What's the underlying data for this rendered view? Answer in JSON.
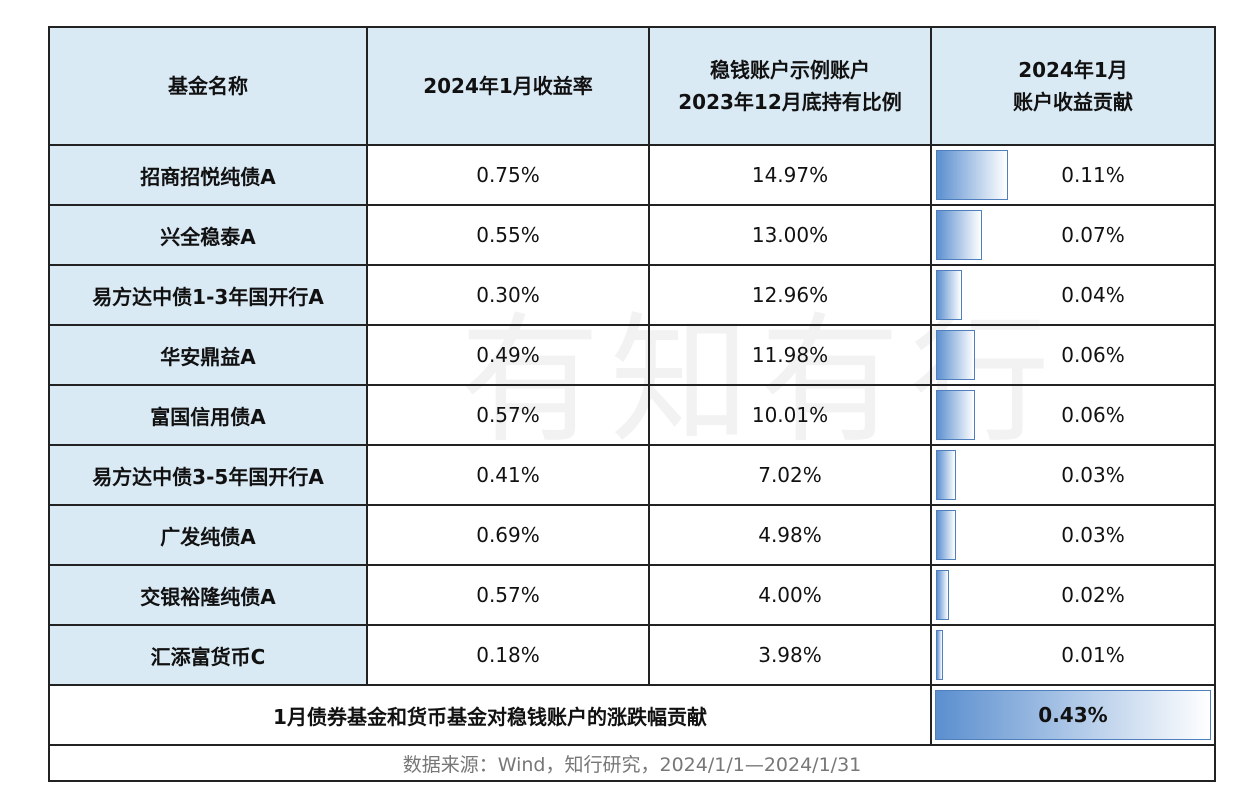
{
  "headers": {
    "fund_name": "基金名称",
    "return": "2024年1月收益率",
    "weight_line1": "稳钱账户示例账户",
    "weight_line2": "2023年12月底持有比例",
    "contrib_line1": "2024年1月",
    "contrib_line2": "账户收益贡献"
  },
  "rows": [
    {
      "name": "招商招悦纯债A",
      "return": "0.75%",
      "weight": "14.97%",
      "contrib": "0.11%",
      "contrib_value": 0.11
    },
    {
      "name": "兴全稳泰A",
      "return": "0.55%",
      "weight": "13.00%",
      "contrib": "0.07%",
      "contrib_value": 0.07
    },
    {
      "name": "易方达中债1-3年国开行A",
      "return": "0.30%",
      "weight": "12.96%",
      "contrib": "0.04%",
      "contrib_value": 0.04
    },
    {
      "name": "华安鼎益A",
      "return": "0.49%",
      "weight": "11.98%",
      "contrib": "0.06%",
      "contrib_value": 0.06
    },
    {
      "name": "富国信用债A",
      "return": "0.57%",
      "weight": "10.01%",
      "contrib": "0.06%",
      "contrib_value": 0.06
    },
    {
      "name": "易方达中债3-5年国开行A",
      "return": "0.41%",
      "weight": "7.02%",
      "contrib": "0.03%",
      "contrib_value": 0.03
    },
    {
      "name": "广发纯债A",
      "return": "0.69%",
      "weight": "4.98%",
      "contrib": "0.03%",
      "contrib_value": 0.03
    },
    {
      "name": "交银裕隆纯债A",
      "return": "0.57%",
      "weight": "4.00%",
      "contrib": "0.02%",
      "contrib_value": 0.02
    },
    {
      "name": "汇添富货币C",
      "return": "0.18%",
      "weight": "3.98%",
      "contrib": "0.01%",
      "contrib_value": 0.01
    }
  ],
  "summary": {
    "label": "1月债券基金和货币基金对稳钱账户的涨跌幅贡献",
    "total": "0.43%",
    "total_value": 0.43
  },
  "source": "数据来源：Wind，知行研究，2024/1/1—2024/1/31",
  "watermark": "有知有行",
  "colors": {
    "header_bg": "#daeaf5",
    "bar_start": "#5b8fcf",
    "bar_border": "#4f7fbd"
  }
}
